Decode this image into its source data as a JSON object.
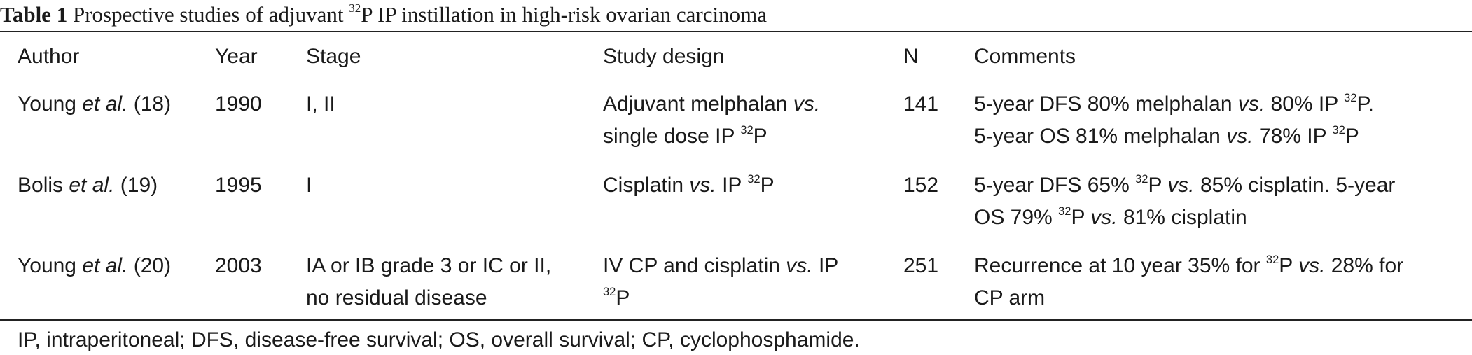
{
  "caption": {
    "label": "Table 1",
    "text_before": "Prospective studies of adjuvant",
    "sup": "32",
    "text_after": "P IP instillation in high-risk ovarian carcinoma"
  },
  "headers": {
    "author": "Author",
    "year": "Year",
    "stage": "Stage",
    "design": "Study design",
    "n": "N",
    "comments": "Comments"
  },
  "rows": [
    {
      "author": "Young",
      "author_etal": "et al.",
      "author_ref": "(18)",
      "year": "1990",
      "stage_1": "I, II",
      "stage_2": "",
      "design_1a": "Adjuvant melphalan",
      "design_1b": "vs.",
      "design_2a": "single dose IP",
      "design_2sup": "32",
      "design_2b": "P",
      "n": "141",
      "c1a": "5-year DFS 80% melphalan",
      "c1b": "vs.",
      "c1c": "80% IP",
      "c1sup": "32",
      "c1d": "P.",
      "c2a": "5-year OS 81% melphalan",
      "c2b": "vs.",
      "c2c": "78% IP",
      "c2sup": "32",
      "c2d": "P"
    },
    {
      "author": "Bolis",
      "author_etal": "et al.",
      "author_ref": "(19)",
      "year": "1995",
      "stage_1": "I",
      "design_1a": "Cisplatin",
      "design_1b": "vs.",
      "design_1c": "IP",
      "design_1sup": "32",
      "design_1d": "P",
      "n": "152",
      "c1a": "5-year DFS 65%",
      "c1sup": "32",
      "c1b": "P",
      "c1c": "vs.",
      "c1d": "85% cisplatin. 5-year",
      "c2a": "OS 79%",
      "c2sup": "32",
      "c2b": "P",
      "c2c": "vs.",
      "c2d": "81% cisplatin"
    },
    {
      "author": "Young",
      "author_etal": "et al.",
      "author_ref": "(20)",
      "year": "2003",
      "stage_1": "IA or IB grade 3 or IC or II,",
      "stage_2": "no residual disease",
      "design_1a": "IV CP and cisplatin",
      "design_1b": "vs.",
      "design_1c": "IP",
      "design_2sup": "32",
      "design_2b": "P",
      "n": "251",
      "c1a": "Recurrence at 10 year 35% for",
      "c1sup": "32",
      "c1b": "P",
      "c1c": "vs.",
      "c1d": "28% for",
      "c2a": "CP arm"
    }
  ],
  "footnote": "IP, intraperitoneal; DFS, disease-free survival; OS, overall survival; CP, cyclophosphamide."
}
